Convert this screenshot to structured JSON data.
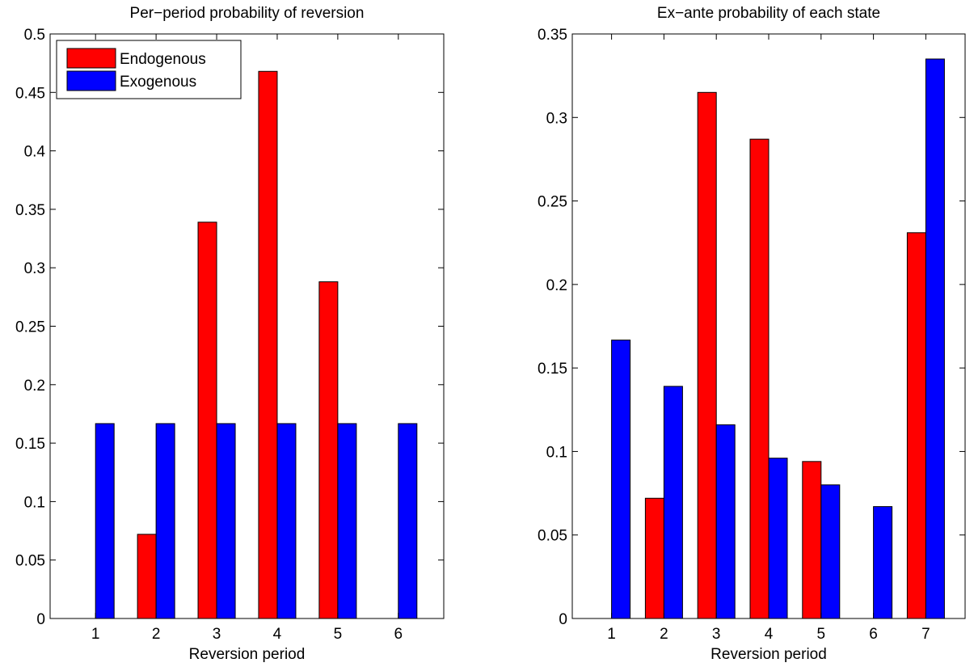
{
  "colors": {
    "endogenous": "#ff0000",
    "exogenous": "#0000ff"
  },
  "chart_data": [
    {
      "type": "bar",
      "title": "Per−period probability of reversion",
      "xlabel": "Reversion period",
      "ylabel": "",
      "categories": [
        "1",
        "2",
        "3",
        "4",
        "5",
        "6"
      ],
      "ylim": [
        0,
        0.5
      ],
      "yticks": [
        0,
        0.05,
        0.1,
        0.15,
        0.2,
        0.25,
        0.3,
        0.35,
        0.4,
        0.45,
        0.5
      ],
      "ytick_labels": [
        "0",
        "0.05",
        "0.1",
        "0.15",
        "0.2",
        "0.25",
        "0.3",
        "0.35",
        "0.4",
        "0.45",
        "0.5"
      ],
      "legend": {
        "placement": "top-left",
        "show": true
      },
      "series": [
        {
          "name": "Endogenous",
          "values": [
            0,
            0.072,
            0.339,
            0.468,
            0.288,
            0
          ]
        },
        {
          "name": "Exogenous",
          "values": [
            0.1667,
            0.1667,
            0.1667,
            0.1667,
            0.1667,
            0.1667
          ]
        }
      ]
    },
    {
      "type": "bar",
      "title": "Ex−ante probability of each state",
      "xlabel": "Reversion period",
      "ylabel": "",
      "categories": [
        "1",
        "2",
        "3",
        "4",
        "5",
        "6",
        "7"
      ],
      "ylim": [
        0,
        0.35
      ],
      "yticks": [
        0,
        0.05,
        0.1,
        0.15,
        0.2,
        0.25,
        0.3,
        0.35
      ],
      "ytick_labels": [
        "0",
        "0.05",
        "0.1",
        "0.15",
        "0.2",
        "0.25",
        "0.3",
        "0.35"
      ],
      "legend": {
        "show": false
      },
      "series": [
        {
          "values": [
            0,
            0.072,
            0.315,
            0.287,
            0.094,
            0,
            0.231
          ]
        },
        {
          "values": [
            0.1667,
            0.139,
            0.116,
            0.096,
            0.08,
            0.067,
            0.335
          ]
        }
      ]
    }
  ]
}
